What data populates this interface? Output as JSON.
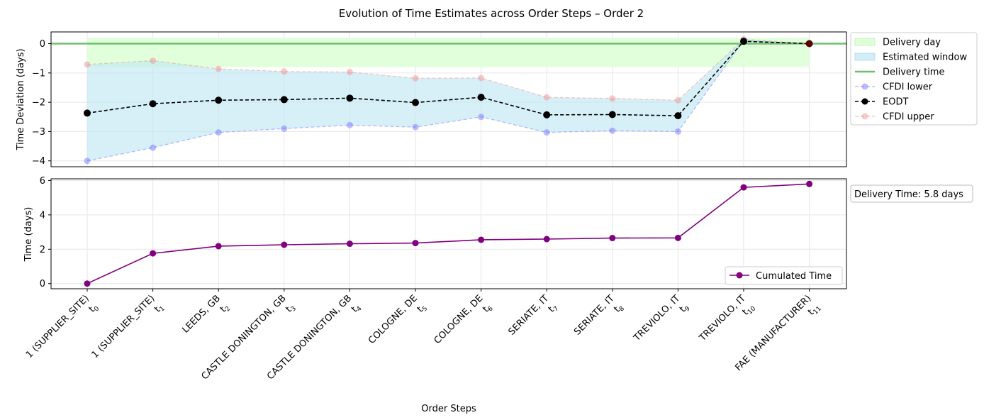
{
  "chart_data": {
    "title": "Evolution of Time Estimates across Order Steps – Order 2",
    "xlabel": "Order Steps",
    "categories": [
      "1 (SUPPLIER_SITE)",
      "1 (SUPPLIER_SITE)",
      "LEEDS, GB",
      "CASTLE DONINGTON, GB",
      "CASTLE DONINGTON, GB",
      "COLOGNE, DE",
      "COLOGNE, DE",
      "SERIATE, IT",
      "SERIATE, IT",
      "TREVIOLO, IT",
      "TREVIOLO, IT",
      "FAE (MANUFACTURER)"
    ],
    "step_labels": [
      "t0",
      "t1",
      "t2",
      "t3",
      "t4",
      "t5",
      "t6",
      "t7",
      "t8",
      "t9",
      "t10",
      "t11"
    ],
    "step_base": "t",
    "step_indices": [
      "0",
      "1",
      "2",
      "3",
      "4",
      "5",
      "6",
      "7",
      "8",
      "9",
      "10",
      "11"
    ],
    "category_colors": [
      "#b22222",
      "#000000",
      "#000000",
      "#000000",
      "#000000",
      "#000000",
      "#000000",
      "#000000",
      "#000000",
      "#000000",
      "#000000",
      "#4a8a1e"
    ],
    "charts": [
      {
        "type": "line",
        "ylabel": "Time Deviation (days)",
        "ylim": [
          -4.2,
          0.4
        ],
        "yticks": [
          0,
          -1,
          -2,
          -3,
          -4
        ],
        "ytick_labels": [
          "0",
          "−1",
          "−2",
          "−3",
          "−4"
        ],
        "grid": true,
        "legend_position": "outside-right",
        "delivery_day_band": [
          -0.8,
          0.2
        ],
        "delivery_time": 0,
        "series": [
          {
            "name": "CFDI lower",
            "values": [
              -4.0,
              -3.55,
              -3.03,
              -2.9,
              -2.78,
              -2.85,
              -2.5,
              -3.03,
              -2.97,
              -3.0,
              0.1,
              0.0
            ],
            "color": "#6b6bff",
            "style": "dashed"
          },
          {
            "name": "EODT",
            "values": [
              -2.37,
              -2.05,
              -1.93,
              -1.91,
              -1.86,
              -2.01,
              -1.83,
              -2.43,
              -2.42,
              -2.46,
              0.08,
              0.0
            ],
            "color": "#000000",
            "style": "dashed"
          },
          {
            "name": "CFDI upper",
            "values": [
              -0.71,
              -0.58,
              -0.86,
              -0.95,
              -0.97,
              -1.18,
              -1.17,
              -1.83,
              -1.87,
              -1.93,
              0.15,
              0.0
            ],
            "color": "#f08a8a",
            "style": "dashed"
          }
        ],
        "legend": [
          {
            "name": "Delivery day",
            "kind": "patch",
            "color": "#dfffd9"
          },
          {
            "name": "Estimated window",
            "kind": "patch",
            "color": "#d4eef7"
          },
          {
            "name": "Delivery time",
            "kind": "line",
            "color": "#6dbf6d"
          },
          {
            "name": "CFDI lower",
            "kind": "marker-line",
            "color": "#6b6bff"
          },
          {
            "name": "EODT",
            "kind": "marker-line",
            "color": "#000000"
          },
          {
            "name": "CFDI upper",
            "kind": "marker-line",
            "color": "#f08a8a"
          }
        ]
      },
      {
        "type": "line",
        "ylabel": "Time (days)",
        "ylim": [
          -0.3,
          6.1
        ],
        "yticks": [
          0,
          2,
          4,
          6
        ],
        "ytick_labels": [
          "0",
          "2",
          "4",
          "6"
        ],
        "grid": true,
        "legend_position": "lower-right",
        "series": [
          {
            "name": "Cumulated Time",
            "values": [
              0.0,
              1.76,
              2.18,
              2.26,
              2.32,
              2.36,
              2.55,
              2.59,
              2.65,
              2.66,
              5.6,
              5.8
            ],
            "color": "#800080",
            "style": "solid"
          }
        ],
        "annotation": "Delivery Time: 5.8 days"
      }
    ]
  }
}
